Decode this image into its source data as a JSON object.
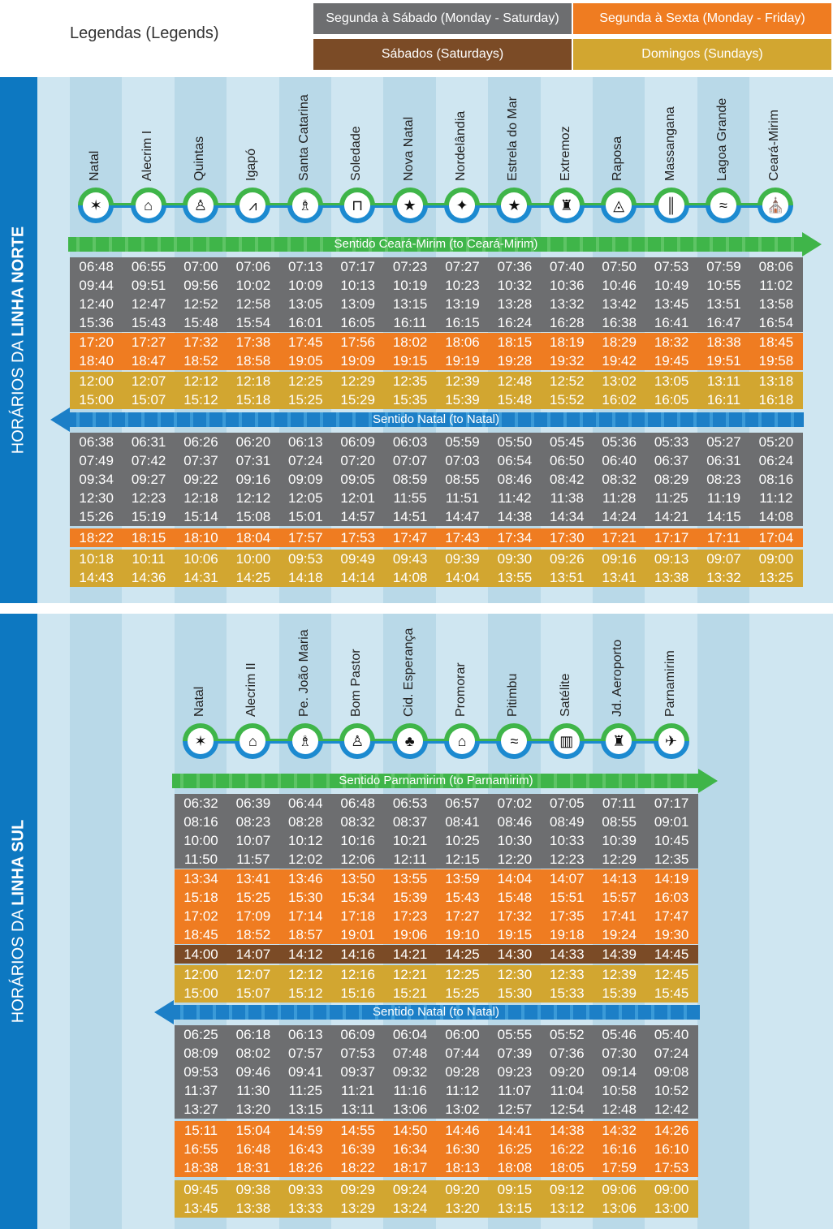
{
  "legend": {
    "title": "Legendas (Legends)",
    "items": [
      {
        "key": "ms",
        "label": "Segunda à Sábado (Monday - Saturday)",
        "color": "#6d6e70"
      },
      {
        "key": "mf",
        "label": "Segunda à Sexta (Monday - Friday)",
        "color": "#ef7c21"
      },
      {
        "key": "sat",
        "label": "Sábados (Saturdays)",
        "color": "#7b4b26"
      },
      {
        "key": "sun",
        "label": "Domingos (Sundays)",
        "color": "#d2a630"
      }
    ]
  },
  "lines": [
    {
      "label_prefix": "HORÁRIOS DA",
      "label_bold": "LINHA NORTE",
      "stops": [
        {
          "name": "Natal",
          "icon": "nativity-icon",
          "glyph": "✶"
        },
        {
          "name": "Alecrim I",
          "icon": "houses-icon",
          "glyph": "⌂"
        },
        {
          "name": "Quintas",
          "icon": "statue-icon",
          "glyph": "♙"
        },
        {
          "name": "Igapó",
          "icon": "bridge-icon",
          "glyph": "⩘"
        },
        {
          "name": "Santa Catarina",
          "icon": "saint-icon",
          "glyph": "♗"
        },
        {
          "name": "Soledade",
          "icon": "kiosk-icon",
          "glyph": "⊓"
        },
        {
          "name": "Nova Natal",
          "icon": "nativity-icon",
          "glyph": "★"
        },
        {
          "name": "Nordelândia",
          "icon": "compass-rose-icon",
          "glyph": "✦"
        },
        {
          "name": "Estrela do Mar",
          "icon": "starfish-icon",
          "glyph": "★"
        },
        {
          "name": "Extremoz",
          "icon": "fisherman-icon",
          "glyph": "♜"
        },
        {
          "name": "Raposa",
          "icon": "fox-icon",
          "glyph": "◬"
        },
        {
          "name": "Massangana",
          "icon": "sugarcane-icon",
          "glyph": "║"
        },
        {
          "name": "Lagoa Grande",
          "icon": "lagoon-icon",
          "glyph": "≈"
        },
        {
          "name": "Ceará-Mirim",
          "icon": "church-icon",
          "glyph": "⛪"
        }
      ],
      "directions": [
        {
          "label": "Sentido Ceará-Mirim (to Ceará-Mirim)",
          "arrow": "right",
          "blocks": [
            {
              "type": "ms",
              "rows": [
                [
                  "06:48",
                  "06:55",
                  "07:00",
                  "07:06",
                  "07:13",
                  "07:17",
                  "07:23",
                  "07:27",
                  "07:36",
                  "07:40",
                  "07:50",
                  "07:53",
                  "07:59",
                  "08:06"
                ],
                [
                  "09:44",
                  "09:51",
                  "09:56",
                  "10:02",
                  "10:09",
                  "10:13",
                  "10:19",
                  "10:23",
                  "10:32",
                  "10:36",
                  "10:46",
                  "10:49",
                  "10:55",
                  "11:02"
                ],
                [
                  "12:40",
                  "12:47",
                  "12:52",
                  "12:58",
                  "13:05",
                  "13:09",
                  "13:15",
                  "13:19",
                  "13:28",
                  "13:32",
                  "13:42",
                  "13:45",
                  "13:51",
                  "13:58"
                ],
                [
                  "15:36",
                  "15:43",
                  "15:48",
                  "15:54",
                  "16:01",
                  "16:05",
                  "16:11",
                  "16:15",
                  "16:24",
                  "16:28",
                  "16:38",
                  "16:41",
                  "16:47",
                  "16:54"
                ]
              ]
            },
            {
              "type": "mf",
              "rows": [
                [
                  "17:20",
                  "17:27",
                  "17:32",
                  "17:38",
                  "17:45",
                  "17:56",
                  "18:02",
                  "18:06",
                  "18:15",
                  "18:19",
                  "18:29",
                  "18:32",
                  "18:38",
                  "18:45"
                ],
                [
                  "18:40",
                  "18:47",
                  "18:52",
                  "18:58",
                  "19:05",
                  "19:09",
                  "19:15",
                  "19:19",
                  "19:28",
                  "19:32",
                  "19:42",
                  "19:45",
                  "19:51",
                  "19:58"
                ]
              ]
            },
            {
              "type": "sun",
              "rows": [
                [
                  "12:00",
                  "12:07",
                  "12:12",
                  "12:18",
                  "12:25",
                  "12:29",
                  "12:35",
                  "12:39",
                  "12:48",
                  "12:52",
                  "13:02",
                  "13:05",
                  "13:11",
                  "13:18"
                ],
                [
                  "15:00",
                  "15:07",
                  "15:12",
                  "15:18",
                  "15:25",
                  "15:29",
                  "15:35",
                  "15:39",
                  "15:48",
                  "15:52",
                  "16:02",
                  "16:05",
                  "16:11",
                  "16:18"
                ]
              ]
            }
          ]
        },
        {
          "label": "Sentido Natal (to Natal)",
          "arrow": "left",
          "blocks": [
            {
              "type": "ms",
              "rows": [
                [
                  "06:38",
                  "06:31",
                  "06:26",
                  "06:20",
                  "06:13",
                  "06:09",
                  "06:03",
                  "05:59",
                  "05:50",
                  "05:45",
                  "05:36",
                  "05:33",
                  "05:27",
                  "05:20"
                ],
                [
                  "07:49",
                  "07:42",
                  "07:37",
                  "07:31",
                  "07:24",
                  "07:20",
                  "07:07",
                  "07:03",
                  "06:54",
                  "06:50",
                  "06:40",
                  "06:37",
                  "06:31",
                  "06:24"
                ],
                [
                  "09:34",
                  "09:27",
                  "09:22",
                  "09:16",
                  "09:09",
                  "09:05",
                  "08:59",
                  "08:55",
                  "08:46",
                  "08:42",
                  "08:32",
                  "08:29",
                  "08:23",
                  "08:16"
                ],
                [
                  "12:30",
                  "12:23",
                  "12:18",
                  "12:12",
                  "12:05",
                  "12:01",
                  "11:55",
                  "11:51",
                  "11:42",
                  "11:38",
                  "11:28",
                  "11:25",
                  "11:19",
                  "11:12"
                ],
                [
                  "15:26",
                  "15:19",
                  "15:14",
                  "15:08",
                  "15:01",
                  "14:57",
                  "14:51",
                  "14:47",
                  "14:38",
                  "14:34",
                  "14:24",
                  "14:21",
                  "14:15",
                  "14:08"
                ]
              ]
            },
            {
              "type": "mf",
              "rows": [
                [
                  "18:22",
                  "18:15",
                  "18:10",
                  "18:04",
                  "17:57",
                  "17:53",
                  "17:47",
                  "17:43",
                  "17:34",
                  "17:30",
                  "17:21",
                  "17:17",
                  "17:11",
                  "17:04"
                ]
              ]
            },
            {
              "type": "sun",
              "rows": [
                [
                  "10:18",
                  "10:11",
                  "10:06",
                  "10:00",
                  "09:53",
                  "09:49",
                  "09:43",
                  "09:39",
                  "09:30",
                  "09:26",
                  "09:16",
                  "09:13",
                  "09:07",
                  "09:00"
                ],
                [
                  "14:43",
                  "14:36",
                  "14:31",
                  "14:25",
                  "14:18",
                  "14:14",
                  "14:08",
                  "14:04",
                  "13:55",
                  "13:51",
                  "13:41",
                  "13:38",
                  "13:32",
                  "13:25"
                ]
              ]
            }
          ]
        }
      ]
    },
    {
      "label_prefix": "HORÁRIOS DA",
      "label_bold": "LINHA SUL",
      "stops": [
        {
          "name": "Natal",
          "icon": "nativity-icon",
          "glyph": "✶"
        },
        {
          "name": "Alecrim II",
          "icon": "houses-icon",
          "glyph": "⌂"
        },
        {
          "name": "Pe. João Maria",
          "icon": "priest-icon",
          "glyph": "♗"
        },
        {
          "name": "Bom Pastor",
          "icon": "shepherd-icon",
          "glyph": "♙"
        },
        {
          "name": "Cid. Esperança",
          "icon": "palm-tree-icon",
          "glyph": "♣"
        },
        {
          "name": "Promorar",
          "icon": "homes-icon",
          "glyph": "⌂"
        },
        {
          "name": "Pitimbu",
          "icon": "river-icon",
          "glyph": "≈"
        },
        {
          "name": "Satélite",
          "icon": "buildings-icon",
          "glyph": "▥"
        },
        {
          "name": "Jd. Aeroporto",
          "icon": "factory-icon",
          "glyph": "♜"
        },
        {
          "name": "Parnamirim",
          "icon": "airplane-icon",
          "glyph": "✈"
        }
      ],
      "directions": [
        {
          "label": "Sentido Parnamirim (to Parnamirim)",
          "arrow": "right",
          "blocks": [
            {
              "type": "ms",
              "rows": [
                [
                  "06:32",
                  "06:39",
                  "06:44",
                  "06:48",
                  "06:53",
                  "06:57",
                  "07:02",
                  "07:05",
                  "07:11",
                  "07:17"
                ],
                [
                  "08:16",
                  "08:23",
                  "08:28",
                  "08:32",
                  "08:37",
                  "08:41",
                  "08:46",
                  "08:49",
                  "08:55",
                  "09:01"
                ],
                [
                  "10:00",
                  "10:07",
                  "10:12",
                  "10:16",
                  "10:21",
                  "10:25",
                  "10:30",
                  "10:33",
                  "10:39",
                  "10:45"
                ],
                [
                  "11:50",
                  "11:57",
                  "12:02",
                  "12:06",
                  "12:11",
                  "12:15",
                  "12:20",
                  "12:23",
                  "12:29",
                  "12:35"
                ]
              ]
            },
            {
              "type": "mf",
              "rows": [
                [
                  "13:34",
                  "13:41",
                  "13:46",
                  "13:50",
                  "13:55",
                  "13:59",
                  "14:04",
                  "14:07",
                  "14:13",
                  "14:19"
                ],
                [
                  "15:18",
                  "15:25",
                  "15:30",
                  "15:34",
                  "15:39",
                  "15:43",
                  "15:48",
                  "15:51",
                  "15:57",
                  "16:03"
                ],
                [
                  "17:02",
                  "17:09",
                  "17:14",
                  "17:18",
                  "17:23",
                  "17:27",
                  "17:32",
                  "17:35",
                  "17:41",
                  "17:47"
                ],
                [
                  "18:45",
                  "18:52",
                  "18:57",
                  "19:01",
                  "19:06",
                  "19:10",
                  "19:15",
                  "19:18",
                  "19:24",
                  "19:30"
                ]
              ]
            },
            {
              "type": "sat",
              "rows": [
                [
                  "14:00",
                  "14:07",
                  "14:12",
                  "14:16",
                  "14:21",
                  "14:25",
                  "14:30",
                  "14:33",
                  "14:39",
                  "14:45"
                ]
              ]
            },
            {
              "type": "sun",
              "rows": [
                [
                  "12:00",
                  "12:07",
                  "12:12",
                  "12:16",
                  "12:21",
                  "12:25",
                  "12:30",
                  "12:33",
                  "12:39",
                  "12:45"
                ],
                [
                  "15:00",
                  "15:07",
                  "15:12",
                  "15:16",
                  "15:21",
                  "15:25",
                  "15:30",
                  "15:33",
                  "15:39",
                  "15:45"
                ]
              ]
            }
          ]
        },
        {
          "label": "Sentido Natal (to Natal)",
          "arrow": "left",
          "blocks": [
            {
              "type": "ms",
              "rows": [
                [
                  "06:25",
                  "06:18",
                  "06:13",
                  "06:09",
                  "06:04",
                  "06:00",
                  "05:55",
                  "05:52",
                  "05:46",
                  "05:40"
                ],
                [
                  "08:09",
                  "08:02",
                  "07:57",
                  "07:53",
                  "07:48",
                  "07:44",
                  "07:39",
                  "07:36",
                  "07:30",
                  "07:24"
                ],
                [
                  "09:53",
                  "09:46",
                  "09:41",
                  "09:37",
                  "09:32",
                  "09:28",
                  "09:23",
                  "09:20",
                  "09:14",
                  "09:08"
                ],
                [
                  "11:37",
                  "11:30",
                  "11:25",
                  "11:21",
                  "11:16",
                  "11:12",
                  "11:07",
                  "11:04",
                  "10:58",
                  "10:52"
                ],
                [
                  "13:27",
                  "13:20",
                  "13:15",
                  "13:11",
                  "13:06",
                  "13:02",
                  "12:57",
                  "12:54",
                  "12:48",
                  "12:42"
                ]
              ]
            },
            {
              "type": "mf",
              "rows": [
                [
                  "15:11",
                  "15:04",
                  "14:59",
                  "14:55",
                  "14:50",
                  "14:46",
                  "14:41",
                  "14:38",
                  "14:32",
                  "14:26"
                ],
                [
                  "16:55",
                  "16:48",
                  "16:43",
                  "16:39",
                  "16:34",
                  "16:30",
                  "16:25",
                  "16:22",
                  "16:16",
                  "16:10"
                ],
                [
                  "18:38",
                  "18:31",
                  "18:26",
                  "18:22",
                  "18:17",
                  "18:13",
                  "18:08",
                  "18:05",
                  "17:59",
                  "17:53"
                ]
              ]
            },
            {
              "type": "sun",
              "rows": [
                [
                  "09:45",
                  "09:38",
                  "09:33",
                  "09:29",
                  "09:24",
                  "09:20",
                  "09:15",
                  "09:12",
                  "09:06",
                  "09:00"
                ],
                [
                  "13:45",
                  "13:38",
                  "13:33",
                  "13:29",
                  "13:24",
                  "13:20",
                  "13:15",
                  "13:12",
                  "13:06",
                  "13:00"
                ]
              ]
            }
          ]
        }
      ]
    }
  ]
}
